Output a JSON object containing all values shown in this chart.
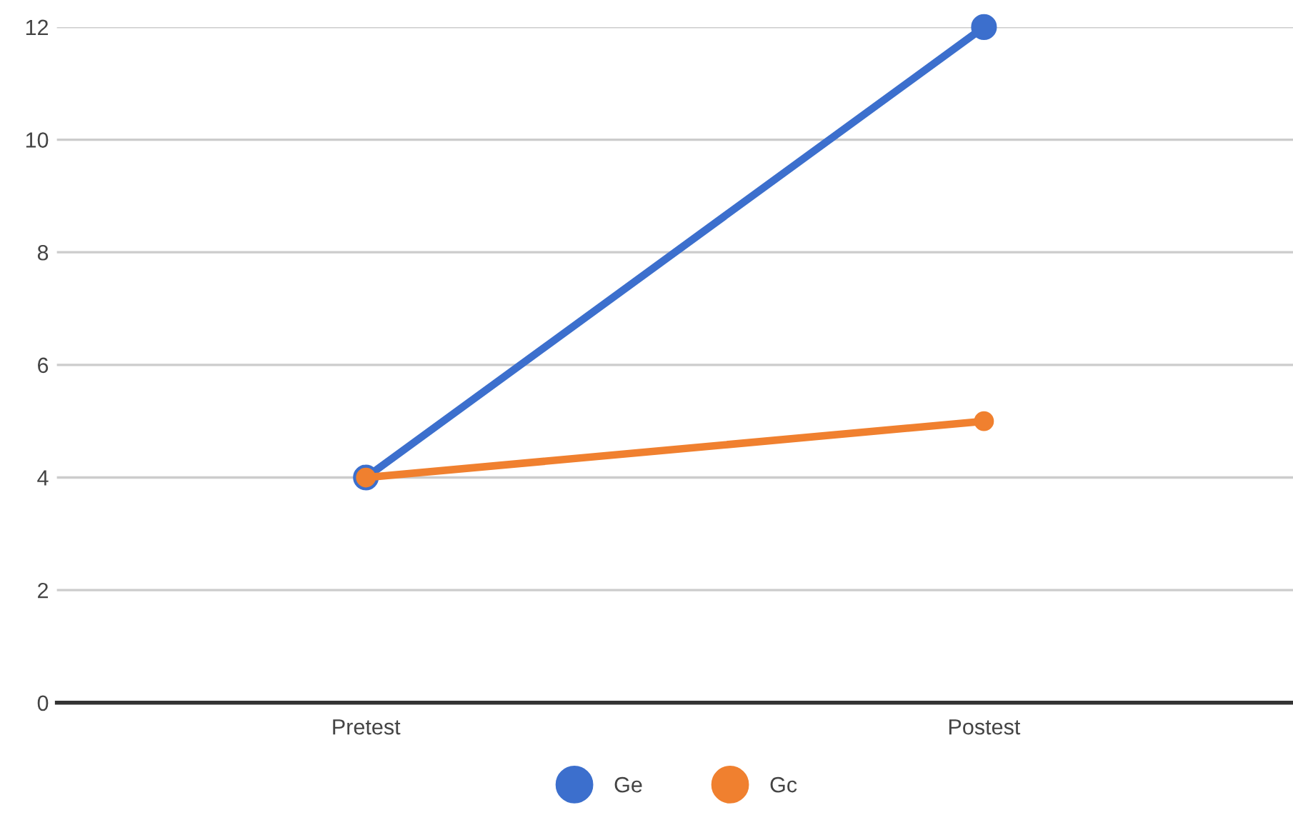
{
  "chart_data": {
    "type": "line",
    "categories": [
      "Pretest",
      "Postest"
    ],
    "series": [
      {
        "name": "Ge",
        "color": "#3c6fcd",
        "values": [
          4,
          12
        ]
      },
      {
        "name": "Gc",
        "color": "#f0802f",
        "values": [
          4,
          5
        ]
      }
    ],
    "ylim": [
      0,
      12
    ],
    "yticks": [
      0,
      2,
      4,
      6,
      8,
      10,
      12
    ],
    "grid": "y",
    "legend": "bottom",
    "marker": "circle",
    "line_style": "solid"
  }
}
